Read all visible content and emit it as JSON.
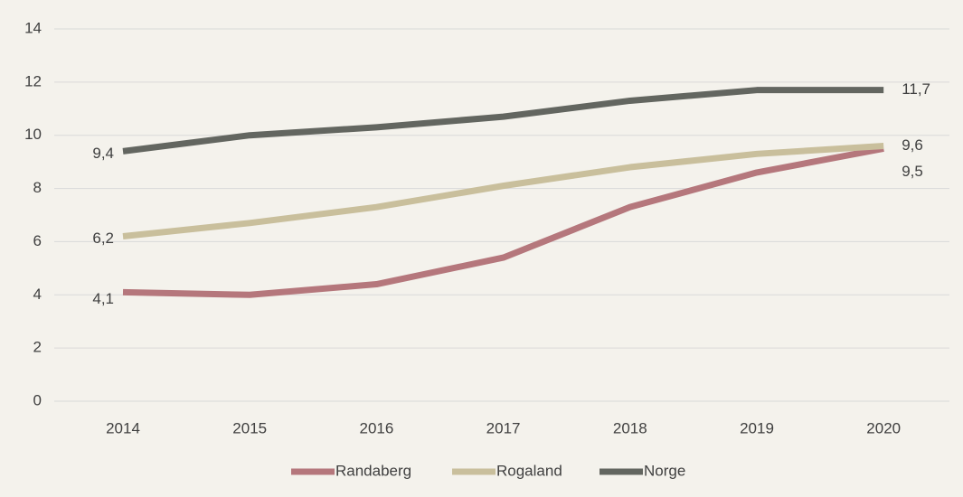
{
  "chart_data": {
    "type": "line",
    "categories": [
      "2014",
      "2015",
      "2016",
      "2017",
      "2018",
      "2019",
      "2020"
    ],
    "series": [
      {
        "name": "Randaberg",
        "color": "#b5777c",
        "values": [
          4.1,
          4.0,
          4.4,
          5.4,
          7.3,
          8.6,
          9.5
        ],
        "value_labels": [
          "4,1",
          null,
          null,
          null,
          null,
          null,
          "9,5"
        ]
      },
      {
        "name": "Rogaland",
        "color": "#c9bf9c",
        "values": [
          6.2,
          6.7,
          7.3,
          8.1,
          8.8,
          9.3,
          9.6
        ],
        "value_labels": [
          "6,2",
          null,
          null,
          null,
          null,
          null,
          "9,6"
        ]
      },
      {
        "name": "Norge",
        "color": "#636660",
        "values": [
          9.4,
          10.0,
          10.3,
          10.7,
          11.3,
          11.7,
          11.7
        ],
        "value_labels": [
          "9,4",
          null,
          null,
          null,
          null,
          null,
          "11,7"
        ]
      }
    ],
    "ylim": [
      0,
      14
    ],
    "yticks": [
      0,
      2,
      4,
      6,
      8,
      10,
      12,
      14
    ],
    "grid": true,
    "legend": "bottom"
  }
}
